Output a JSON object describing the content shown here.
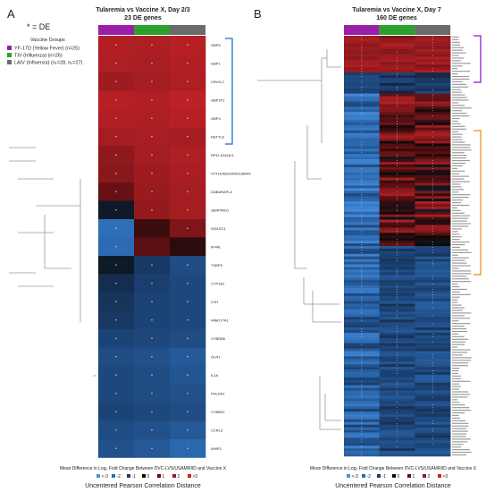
{
  "chart_data": [
    {
      "type": "heatmap",
      "panel_label": "A",
      "title": "Tularemia vs Vaccine X, Day 2/3",
      "subtitle": "23 DE genes",
      "legend_note": "* = DE",
      "group_legend_title": "Vaccine Groups",
      "groups": [
        {
          "name": "YF-17D (Yellow Fever) (n=25)",
          "color": "#9b1fa6"
        },
        {
          "name": "TIV (Influenza) (n=26)",
          "color": "#2ca02c"
        },
        {
          "name": "LAIV (Influenza) (n₁=28, n₂=27)",
          "color": "#6b6b6b"
        }
      ],
      "genes": [
        "GBP5",
        "GBP1",
        "CRVS-2",
        "GBP1P1",
        "GBP4",
        "NSTTL6",
        "RP11-53418.5",
        "OTTHUMG00000185040",
        "GABARAPL3",
        "SERPING1",
        "SIGLEC1",
        "IFI44L",
        "TXBPS",
        "CYP1B1",
        "C1H",
        "FAM177A1",
        "CYBRB6",
        "OLR1",
        "IL1A",
        "PHLDA1",
        "CYBB3Y",
        "CCRL3",
        "WNP3"
      ],
      "values": [
        [
          2.6,
          2.5,
          2.7
        ],
        [
          2.5,
          2.4,
          2.6
        ],
        [
          2.2,
          2.3,
          2.5
        ],
        [
          2.7,
          2.6,
          2.8
        ],
        [
          2.6,
          2.5,
          2.7
        ],
        [
          2.3,
          2.4,
          2.3
        ],
        [
          1.9,
          2.3,
          2.5
        ],
        [
          1.8,
          2.2,
          2.4
        ],
        [
          1.2,
          2.1,
          2.3
        ],
        [
          -0.3,
          2.0,
          2.3
        ],
        [
          -2.1,
          0.6,
          1.6
        ],
        [
          -2.0,
          1.0,
          0.4
        ],
        [
          -0.3,
          -0.9,
          -1.3
        ],
        [
          -0.7,
          -1.0,
          -1.2
        ],
        [
          -0.8,
          -1.1,
          -1.2
        ],
        [
          -0.9,
          -1.1,
          -1.2
        ],
        [
          -1.1,
          -1.2,
          -1.3
        ],
        [
          -1.3,
          -1.4,
          -1.6
        ],
        [
          -1.2,
          -1.3,
          -1.5
        ],
        [
          -1.2,
          -1.3,
          -1.4
        ],
        [
          -1.1,
          -1.2,
          -1.3
        ],
        [
          -1.3,
          -1.4,
          -1.6
        ],
        [
          -1.4,
          -1.6,
          -1.9
        ]
      ],
      "de_marks": [
        [
          1,
          1,
          1
        ],
        [
          1,
          1,
          1
        ],
        [
          1,
          1,
          1
        ],
        [
          1,
          1,
          1
        ],
        [
          1,
          1,
          1
        ],
        [
          1,
          1,
          1
        ],
        [
          1,
          1,
          1
        ],
        [
          1,
          1,
          1
        ],
        [
          1,
          1,
          1
        ],
        [
          1,
          1,
          1
        ],
        [
          1,
          0,
          1
        ],
        [
          1,
          0,
          0
        ],
        [
          1,
          1,
          1
        ],
        [
          1,
          1,
          1
        ],
        [
          1,
          1,
          1
        ],
        [
          1,
          1,
          1
        ],
        [
          1,
          1,
          1
        ],
        [
          1,
          1,
          1
        ],
        [
          1,
          1,
          1
        ],
        [
          1,
          1,
          1
        ],
        [
          1,
          1,
          1
        ],
        [
          1,
          1,
          1
        ],
        [
          1,
          1,
          1
        ]
      ],
      "color_scale": {
        "labels": [
          "<-3",
          "-2",
          "-1",
          "0",
          "1",
          "2",
          ">3"
        ],
        "colors": [
          "#4a90e0",
          "#2c6bb3",
          "#1a3e6e",
          "#0a0a0a",
          "#5c0f12",
          "#941a1e",
          "#c52328"
        ],
        "caption": "Mean Difference in Log₂ Fold Change Between DVC-LVS/USAMRIID and Vaccine X"
      },
      "dendrogram_caption": "Uncentered Pearson Correlation Distance"
    },
    {
      "type": "heatmap",
      "panel_label": "B",
      "title": "Tularemia vs Vaccine X, Day 7",
      "subtitle": "160 DE genes",
      "n_genes": 160,
      "blocks": [
        {
          "rows": 14,
          "yf": [
            1.8,
            2.6
          ],
          "tiv": [
            1.4,
            2.6
          ],
          "laiv": [
            1.6,
            2.6
          ]
        },
        {
          "rows": 8,
          "yf": [
            -1.4,
            -0.6
          ],
          "tiv": [
            -1.2,
            -0.4
          ],
          "laiv": [
            -1.3,
            -0.5
          ]
        },
        {
          "rows": 58,
          "yf": [
            -2.8,
            -1.2
          ],
          "tiv": [
            -0.2,
            2.6
          ],
          "laiv": [
            -0.4,
            2.6
          ]
        },
        {
          "rows": 80,
          "yf": [
            -2.6,
            -1.0
          ],
          "tiv": [
            -1.6,
            -0.7
          ],
          "laiv": [
            -1.7,
            -0.8
          ]
        }
      ],
      "color_scale": {
        "labels": [
          "<-3",
          "-2",
          "-1",
          "0",
          "1",
          "2",
          ">3"
        ],
        "colors": [
          "#4a90e0",
          "#2c6bb3",
          "#1a3e6e",
          "#0a0a0a",
          "#5c0f12",
          "#941a1e",
          "#c52328"
        ],
        "caption": "Mean Difference in Log₂ Fold Change Between DVC-LVS/USAMRIID and Vaccine X"
      },
      "dendrogram_caption": "Uncentered Pearson Correlation Distance"
    }
  ]
}
